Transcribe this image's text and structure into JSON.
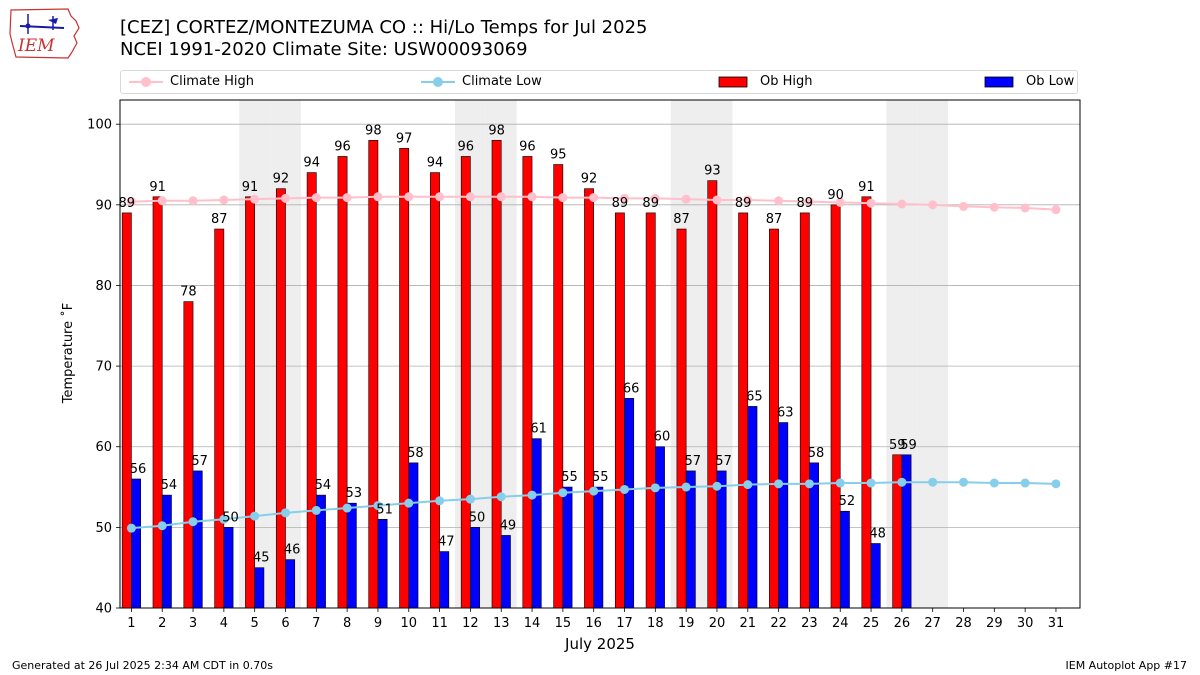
{
  "header": {
    "title_line1": "[CEZ] CORTEZ/MONTEZUMA CO :: Hi/Lo Temps for Jul 2025",
    "title_line2": "NCEI 1991-2020 Climate Site: USW00093069",
    "logo_text": "IEM"
  },
  "legend": {
    "climate_high": "Climate High",
    "climate_low": "Climate Low",
    "ob_high": "Ob High",
    "ob_low": "Ob Low"
  },
  "colors": {
    "ob_high": "#ff0000",
    "ob_low": "#0000ff",
    "climate_high": "#ffc0cb",
    "climate_low": "#87ceeb",
    "weekend_shade": "#eeeeee",
    "grid": "#b0b0b0"
  },
  "chart_data": {
    "type": "bar",
    "xlabel": "July 2025",
    "ylabel": "Temperature ˚F",
    "ylim": [
      40,
      103
    ],
    "yticks": [
      40,
      50,
      60,
      70,
      80,
      90,
      100
    ],
    "grid": "horizontal",
    "legend_placement": "top",
    "categories": [
      "1",
      "2",
      "3",
      "4",
      "5",
      "6",
      "7",
      "8",
      "9",
      "10",
      "11",
      "12",
      "13",
      "14",
      "15",
      "16",
      "17",
      "18",
      "19",
      "20",
      "21",
      "22",
      "23",
      "24",
      "25",
      "26",
      "27",
      "28",
      "29",
      "30",
      "31"
    ],
    "weekend_days": [
      5,
      6,
      12,
      13,
      19,
      20,
      26,
      27
    ],
    "series": [
      {
        "name": "Ob High",
        "kind": "bar",
        "values": [
          89,
          91,
          78,
          87,
          91,
          92,
          94,
          96,
          98,
          97,
          94,
          96,
          98,
          96,
          95,
          92,
          89,
          89,
          87,
          93,
          89,
          87,
          89,
          90,
          91,
          59,
          null,
          null,
          null,
          null,
          null
        ]
      },
      {
        "name": "Ob Low",
        "kind": "bar",
        "values": [
          56,
          54,
          57,
          50,
          45,
          46,
          54,
          53,
          51,
          58,
          47,
          50,
          49,
          61,
          55,
          55,
          66,
          60,
          57,
          57,
          65,
          63,
          58,
          52,
          48,
          59,
          null,
          null,
          null,
          null,
          null
        ]
      },
      {
        "name": "Climate High",
        "kind": "line",
        "values": [
          90.4,
          90.5,
          90.5,
          90.6,
          90.7,
          90.8,
          90.9,
          90.9,
          91.0,
          91.0,
          91.0,
          91.0,
          91.0,
          91.0,
          90.9,
          90.9,
          90.8,
          90.8,
          90.7,
          90.6,
          90.6,
          90.5,
          90.4,
          90.3,
          90.2,
          90.1,
          90.0,
          89.8,
          89.7,
          89.6,
          89.4
        ]
      },
      {
        "name": "Climate Low",
        "kind": "line",
        "values": [
          49.9,
          50.2,
          50.7,
          51.0,
          51.4,
          51.8,
          52.1,
          52.4,
          52.7,
          53.0,
          53.3,
          53.5,
          53.8,
          54.0,
          54.3,
          54.5,
          54.7,
          54.9,
          55.0,
          55.1,
          55.3,
          55.4,
          55.4,
          55.5,
          55.5,
          55.6,
          55.6,
          55.6,
          55.5,
          55.5,
          55.4
        ]
      }
    ]
  },
  "footer": {
    "generated": "Generated at 26 Jul 2025 2:34 AM CDT in 0.70s",
    "app": "IEM Autoplot App #17"
  }
}
